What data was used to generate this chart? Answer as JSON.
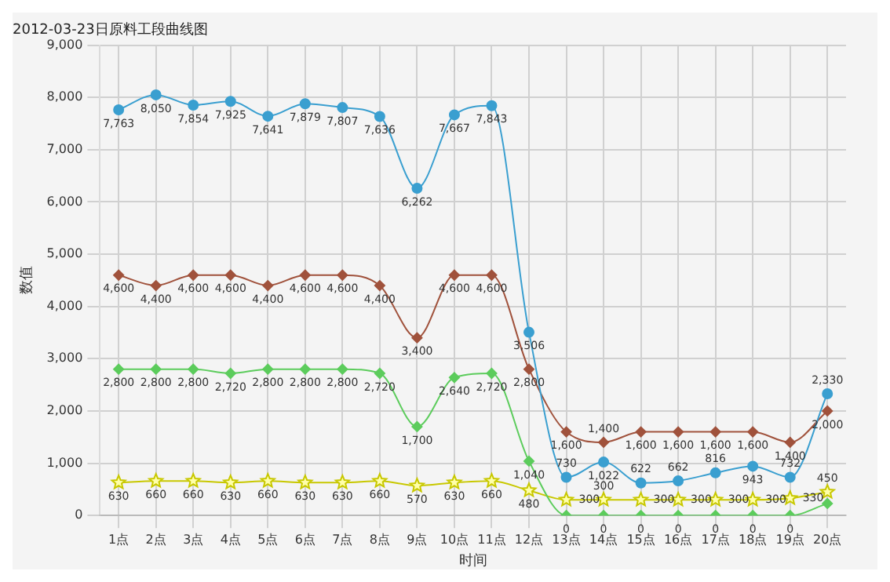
{
  "chart_data": {
    "type": "line",
    "title": "2012-03-23日原料工段曲线图",
    "xlabel": "时间",
    "ylabel": "数值",
    "categories": [
      "1点",
      "2点",
      "3点",
      "4点",
      "5点",
      "6点",
      "7点",
      "8点",
      "9点",
      "10点",
      "11点",
      "12点",
      "13点",
      "14点",
      "15点",
      "16点",
      "17点",
      "18点",
      "19点",
      "20点"
    ],
    "series": [
      {
        "color": "#3a9fd0",
        "marker": "circle",
        "values": [
          7763,
          8050,
          7854,
          7925,
          7641,
          7879,
          7807,
          7636,
          6262,
          7667,
          7843,
          3506,
          730,
          1022,
          622,
          662,
          816,
          943,
          732,
          2330
        ],
        "value_labels": [
          "7,763",
          "8,050",
          "7,854",
          "7,925",
          "7,641",
          "7,879",
          "7,807",
          "7,636",
          "6,262",
          "7,667",
          "7,843",
          "3,506",
          "730",
          "1,022",
          "622",
          "662",
          "816",
          "943",
          "732",
          "2,330"
        ]
      },
      {
        "color": "#a0523c",
        "marker": "diamond",
        "values": [
          4600,
          4400,
          4600,
          4600,
          4400,
          4600,
          4600,
          4400,
          3400,
          4600,
          4600,
          2800,
          1600,
          1400,
          1600,
          1600,
          1600,
          1600,
          1400,
          2000
        ],
        "value_labels": [
          "4,600",
          "4,400",
          "4,600",
          "4,600",
          "4,400",
          "4,600",
          "4,600",
          "4,400",
          "3,400",
          "4,600",
          "4,600",
          "2,800",
          "1,600",
          "1,400",
          "1,600",
          "1,600",
          "1,600",
          "1,600",
          "1,400",
          "2,000"
        ]
      },
      {
        "color": "#5ccc5c",
        "marker": "diamond",
        "values": [
          2800,
          2800,
          2800,
          2720,
          2800,
          2800,
          2800,
          2720,
          1700,
          2640,
          2720,
          1040,
          0,
          0,
          0,
          0,
          0,
          0,
          0,
          230
        ],
        "value_labels": [
          "2,800",
          "2,800",
          "2,800",
          "2,720",
          "2,800",
          "2,800",
          "2,800",
          "2,720",
          "1,700",
          "2,640",
          "2,720",
          "1,040",
          "0",
          "0",
          "0",
          "0",
          "0",
          "0",
          "0",
          null
        ]
      },
      {
        "color": "#c8c800",
        "marker": "star",
        "values": [
          630,
          660,
          660,
          630,
          660,
          630,
          630,
          660,
          570,
          630,
          660,
          480,
          300,
          300,
          300,
          300,
          300,
          300,
          330,
          450
        ],
        "value_labels": [
          "630",
          "660",
          "660",
          "630",
          "660",
          "630",
          "630",
          "660",
          "570",
          "630",
          "660",
          "480",
          "300",
          "300",
          "300",
          "300",
          "300",
          "300",
          "330",
          "450"
        ]
      }
    ],
    "ylim": [
      0,
      9000
    ],
    "yticks": [
      {
        "value": 0,
        "label": "0"
      },
      {
        "value": 1000,
        "label": "1,000"
      },
      {
        "value": 2000,
        "label": "2,000"
      },
      {
        "value": 3000,
        "label": "3,000"
      },
      {
        "value": 4000,
        "label": "4,000"
      },
      {
        "value": 5000,
        "label": "5,000"
      },
      {
        "value": 6000,
        "label": "6,000"
      },
      {
        "value": 7000,
        "label": "7,000"
      },
      {
        "value": 8000,
        "label": "8,000"
      },
      {
        "value": 9000,
        "label": "9,000"
      }
    ],
    "grid": true,
    "legend": false
  }
}
